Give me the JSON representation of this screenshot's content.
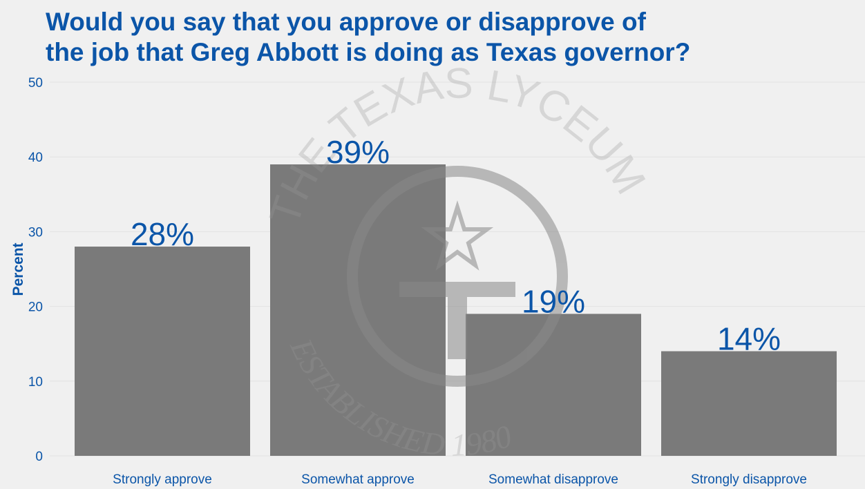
{
  "chart_data": {
    "type": "bar",
    "title_lines": [
      "Would you say that you approve or disapprove of",
      "the job that Greg Abbott is doing as Texas governor?"
    ],
    "xlabel": "",
    "ylabel": "Percent",
    "categories": [
      "Strongly approve",
      "Somewhat approve",
      "Somewhat disapprove",
      "Strongly disapprove"
    ],
    "values": [
      28,
      39,
      19,
      14
    ],
    "value_labels": [
      "28%",
      "39%",
      "19%",
      "14%"
    ],
    "ylim": [
      0,
      50
    ],
    "yticks": [
      0,
      10,
      20,
      30,
      40,
      50
    ],
    "grid": true,
    "legend": "none",
    "colors": {
      "bar": "#7a7a7a",
      "text": "#0b55a8",
      "background": "#f0f0f0",
      "grid": "#e2e2e2"
    }
  },
  "watermark": {
    "top_text": "THE TEXAS LYCEUM",
    "bottom_text": "ESTABLISHED 1980",
    "icon": "star-t-seal-icon"
  }
}
